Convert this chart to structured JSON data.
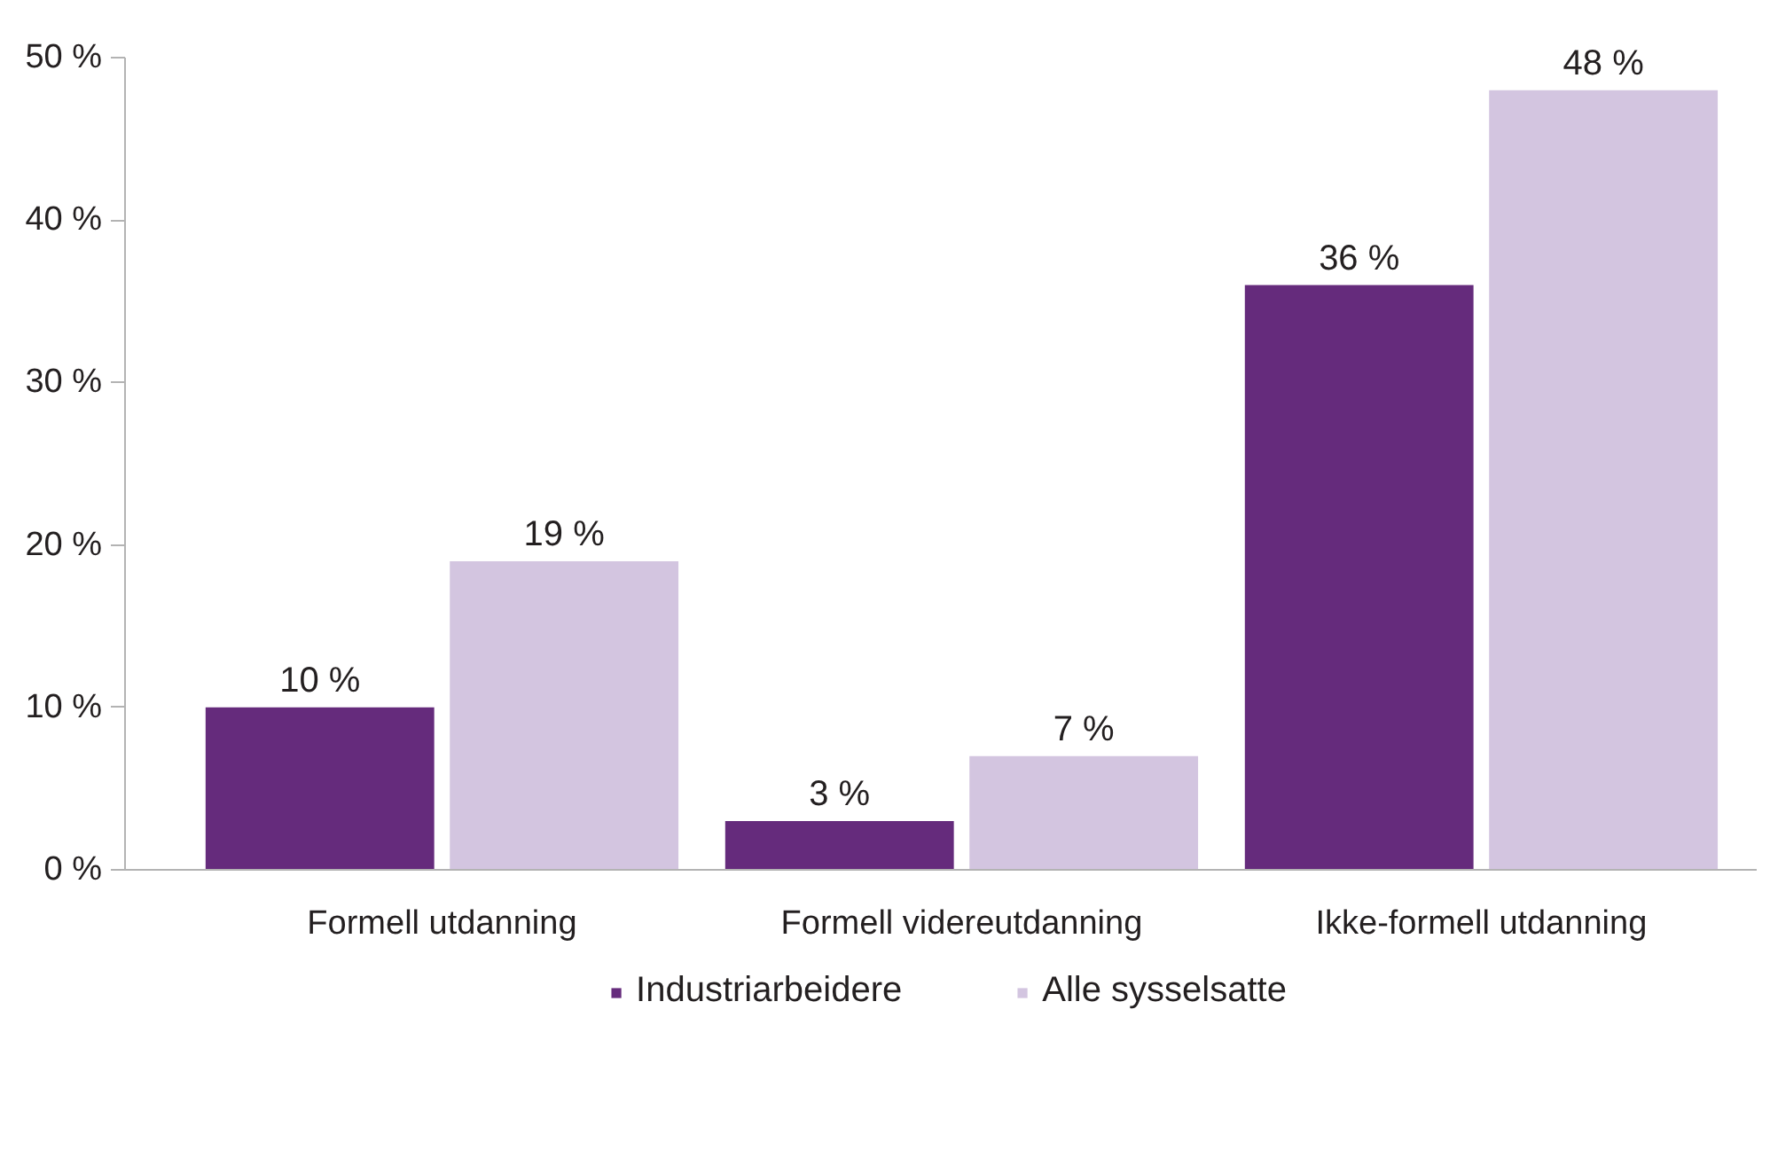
{
  "chart_data": {
    "type": "bar",
    "categories": [
      "Formell utdanning",
      "Formell videreutdanning",
      "Ikke-formell utdanning"
    ],
    "series": [
      {
        "name": "Industriarbeidere",
        "color": "#652b7c",
        "values": [
          10,
          3,
          36
        ],
        "value_labels": [
          "10 %",
          "3 %",
          "36 %"
        ]
      },
      {
        "name": "Alle sysselsatte",
        "color": "#d3c5e0",
        "values": [
          19,
          7,
          48
        ],
        "value_labels": [
          "19 %",
          "7 %",
          "48 %"
        ]
      }
    ],
    "ylim": [
      0,
      50
    ],
    "yticks": [
      {
        "value": 0,
        "label": "0 %"
      },
      {
        "value": 10,
        "label": "10 %"
      },
      {
        "value": 20,
        "label": "20 %"
      },
      {
        "value": 30,
        "label": "30 %"
      },
      {
        "value": 40,
        "label": "40 %"
      },
      {
        "value": 50,
        "label": "50 %"
      }
    ],
    "grid": false,
    "legend": "bottom"
  }
}
